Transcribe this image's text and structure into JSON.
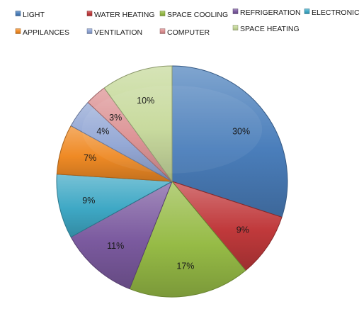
{
  "chart_data": {
    "type": "pie",
    "title": "",
    "categories": [
      "LIGHT",
      "WATER HEATING",
      "SPACE COOLING",
      "REFRIGERATION",
      "ELECTRONICS",
      "APPILANCES",
      "VENTILATION",
      "COMPUTER",
      "SPACE HEATING"
    ],
    "values": [
      30,
      9,
      17,
      11,
      9,
      7,
      4,
      3,
      10
    ],
    "data_labels": [
      "30%",
      "9%",
      "17%",
      "11%",
      "9%",
      "7%",
      "4%",
      "3%",
      "10%"
    ],
    "colors": [
      "#4a7ebb",
      "#c0393b",
      "#96bb46",
      "#7b5a9f",
      "#3ea8c5",
      "#ef8a25",
      "#8ea3d3",
      "#db8e90",
      "#c5d898"
    ],
    "legend": {
      "position": "top"
    },
    "start_angle_deg": 0,
    "direction": "clockwise"
  }
}
